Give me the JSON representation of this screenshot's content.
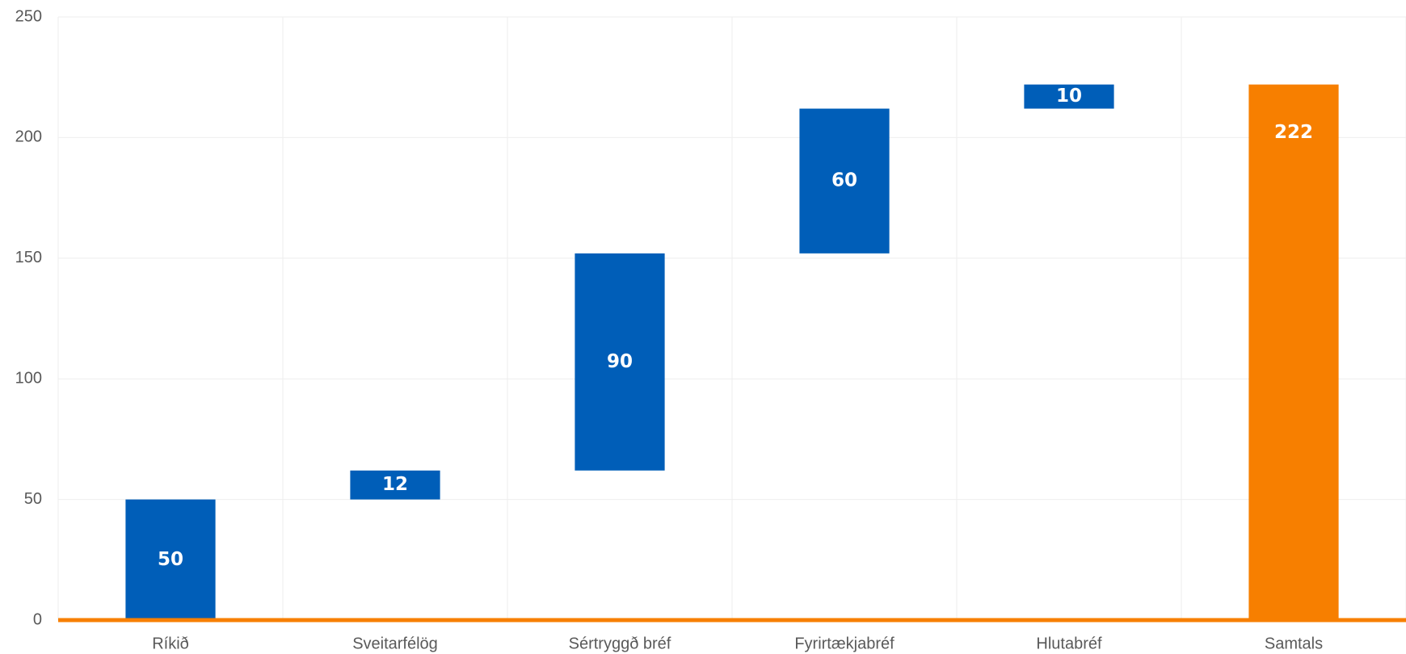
{
  "chart_data": {
    "type": "waterfall",
    "categories": [
      "Ríkið",
      "Sveitarfélög",
      "Sértryggð bréf",
      "Fyrirtækjabréf",
      "Hlutabréf",
      "Samtals"
    ],
    "values": [
      50,
      12,
      90,
      60,
      10,
      222
    ],
    "totals": [
      false,
      false,
      false,
      false,
      false,
      true
    ],
    "colors": [
      "#005eb8",
      "#005eb8",
      "#005eb8",
      "#005eb8",
      "#005eb8",
      "#f77f00"
    ],
    "axis_color": "#f77f00",
    "ylim": [
      0,
      250
    ],
    "yticks": [
      0,
      50,
      100,
      150,
      200,
      250
    ],
    "grid": true
  }
}
